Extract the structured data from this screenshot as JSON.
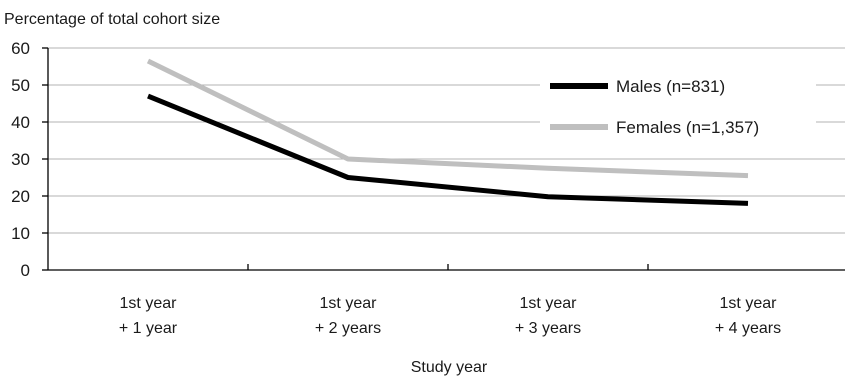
{
  "chart_data": {
    "type": "line",
    "title": "",
    "ylabel": "Percentage of total cohort size",
    "xlabel": "Study year",
    "categories": [
      [
        "1st year",
        "+ 1 year"
      ],
      [
        "1st year",
        "+ 2 years"
      ],
      [
        "1st year",
        "+ 3 years"
      ],
      [
        "1st year",
        "+ 4 years"
      ]
    ],
    "ylim": [
      0,
      60
    ],
    "yticks": [
      0,
      10,
      20,
      30,
      40,
      50,
      60
    ],
    "grid": true,
    "legend_placement": "top-right",
    "series": [
      {
        "name": "Males (n=831)",
        "values": [
          47,
          25,
          19.8,
          18
        ],
        "color": "#000000"
      },
      {
        "name": "Females (n=1,357)",
        "values": [
          56.5,
          30,
          27.5,
          25.5
        ],
        "color": "#bfbfbf"
      }
    ]
  }
}
